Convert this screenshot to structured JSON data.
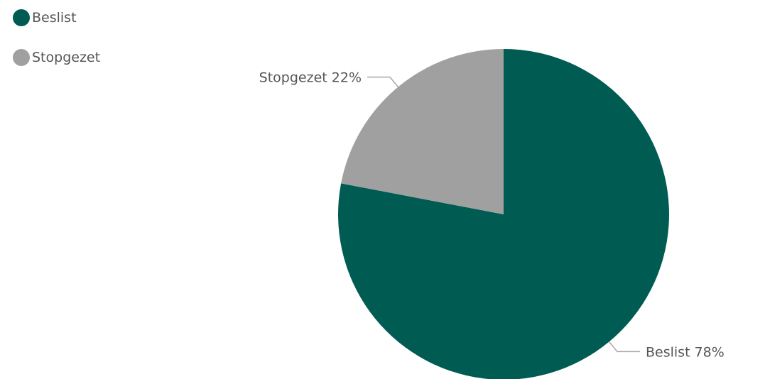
{
  "chart_data": {
    "type": "pie",
    "title": "",
    "legend_position": "top-left",
    "start_angle": "top, clockwise",
    "series": [
      {
        "name": "Beslist",
        "value": 78,
        "label": "Beslist 78%",
        "color": "#005c53"
      },
      {
        "name": "Stopgezet",
        "value": 22,
        "label": "Stopgezet 22%",
        "color": "#a0a0a0"
      }
    ]
  }
}
